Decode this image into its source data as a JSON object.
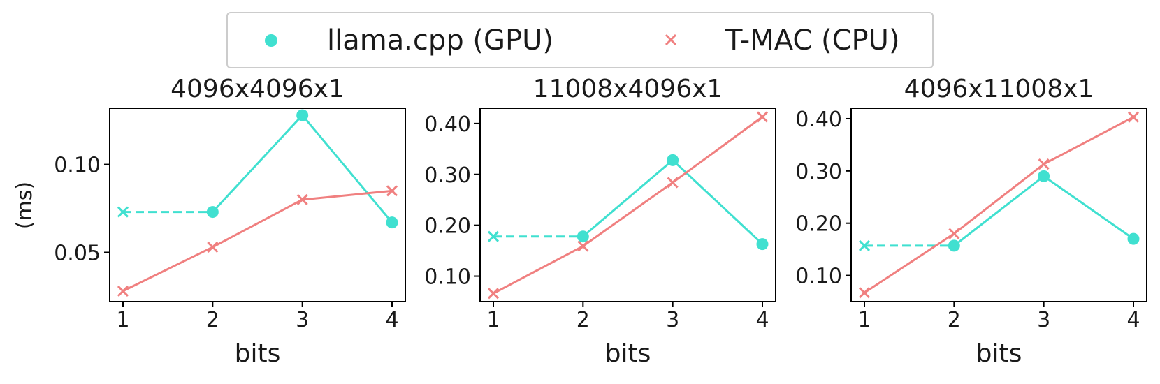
{
  "legend": {
    "items": [
      {
        "label": "llama.cpp (GPU)",
        "color": "#40E0D0",
        "marker": "circle"
      },
      {
        "label": "T-MAC (CPU)",
        "color": "#F08080",
        "marker": "x"
      }
    ]
  },
  "ylabel": "(ms)",
  "chart_data": [
    {
      "type": "line",
      "title": "4096x4096x1",
      "xlabel": "bits",
      "x": [
        1,
        2,
        3,
        4
      ],
      "xticks": [
        "1",
        "2",
        "3",
        "4"
      ],
      "ylim": [
        0.022,
        0.132
      ],
      "yticks": [
        0.05,
        0.1
      ],
      "ytick_labels": [
        "0.05",
        "0.10"
      ],
      "series": [
        {
          "name": "llama.cpp (GPU)",
          "values": [
            0.073,
            0.073,
            0.128,
            0.067
          ],
          "color": "#40E0D0",
          "first_segment_dashed": true
        },
        {
          "name": "T-MAC (CPU)",
          "values": [
            0.028,
            0.053,
            0.08,
            0.085
          ],
          "color": "#F08080"
        }
      ]
    },
    {
      "type": "line",
      "title": "11008x4096x1",
      "xlabel": "bits",
      "x": [
        1,
        2,
        3,
        4
      ],
      "xticks": [
        "1",
        "2",
        "3",
        "4"
      ],
      "ylim": [
        0.05,
        0.43
      ],
      "yticks": [
        0.1,
        0.2,
        0.3,
        0.4
      ],
      "ytick_labels": [
        "0.10",
        "0.20",
        "0.30",
        "0.40"
      ],
      "series": [
        {
          "name": "llama.cpp (GPU)",
          "values": [
            0.178,
            0.178,
            0.328,
            0.163
          ],
          "color": "#40E0D0",
          "first_segment_dashed": true
        },
        {
          "name": "T-MAC (CPU)",
          "values": [
            0.066,
            0.159,
            0.284,
            0.413
          ],
          "color": "#F08080"
        }
      ]
    },
    {
      "type": "line",
      "title": "4096x11008x1",
      "xlabel": "bits",
      "x": [
        1,
        2,
        3,
        4
      ],
      "xticks": [
        "1",
        "2",
        "3",
        "4"
      ],
      "ylim": [
        0.05,
        0.42
      ],
      "yticks": [
        0.1,
        0.2,
        0.3,
        0.4
      ],
      "ytick_labels": [
        "0.10",
        "0.20",
        "0.30",
        "0.40"
      ],
      "series": [
        {
          "name": "llama.cpp (GPU)",
          "values": [
            0.157,
            0.157,
            0.29,
            0.17
          ],
          "color": "#40E0D0",
          "first_segment_dashed": true
        },
        {
          "name": "T-MAC (CPU)",
          "values": [
            0.067,
            0.18,
            0.313,
            0.403
          ],
          "color": "#F08080"
        }
      ]
    }
  ]
}
